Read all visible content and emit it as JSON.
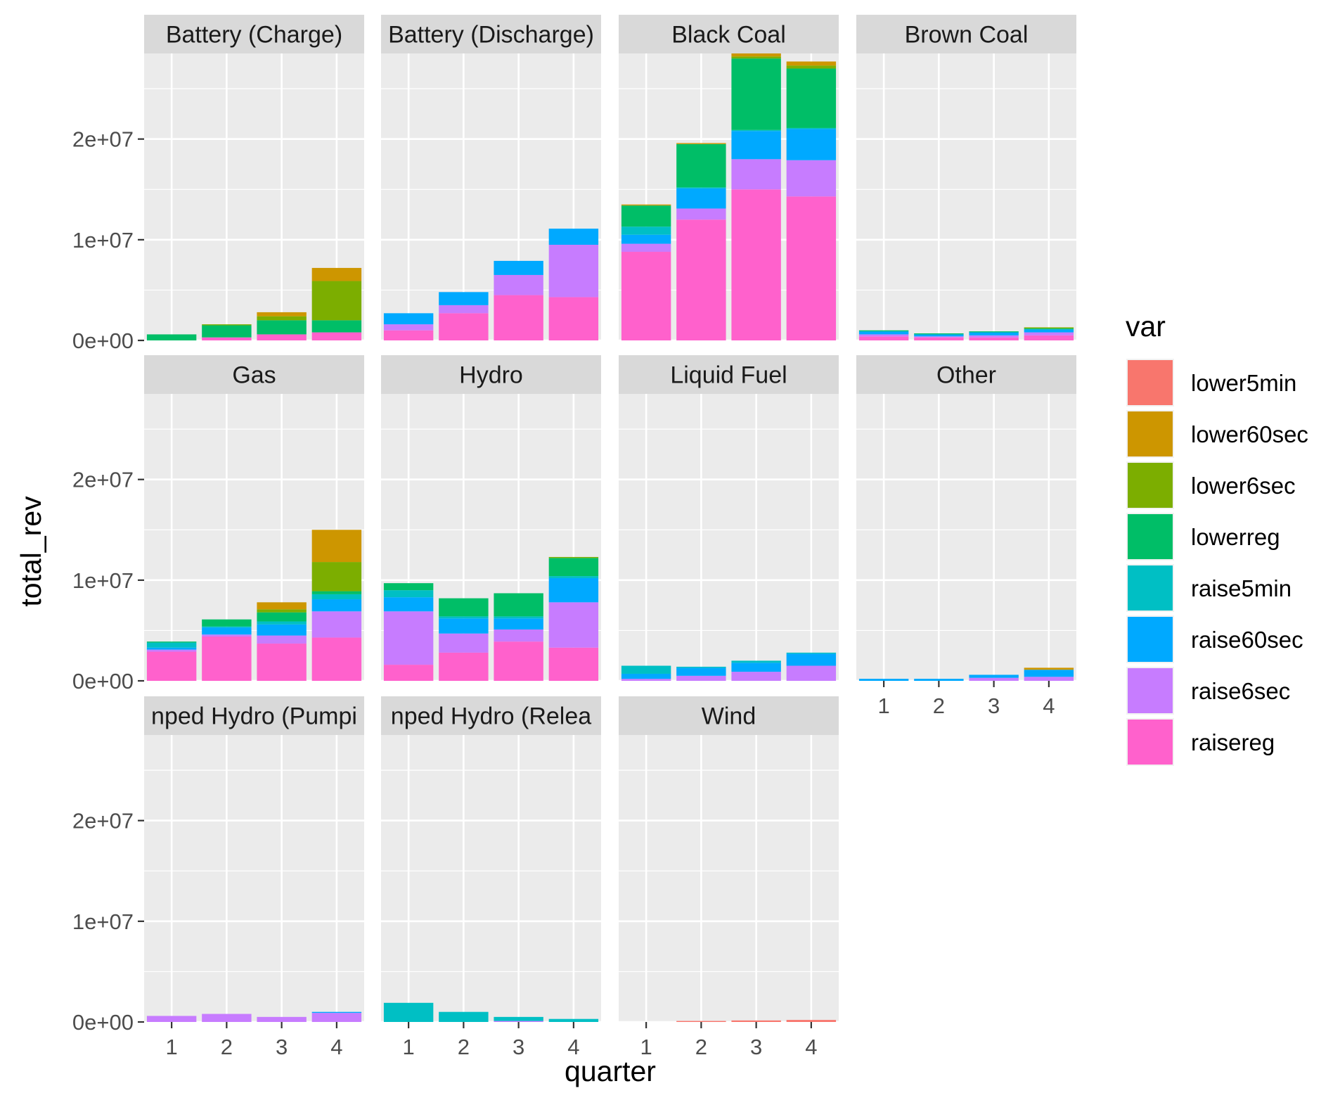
{
  "chart_data": {
    "type": "bar",
    "stacked": true,
    "faceted": true,
    "xlabel": "quarter",
    "ylabel": "total_rev",
    "x_categories": [
      "1",
      "2",
      "3",
      "4"
    ],
    "ylim": [
      0,
      28500000
    ],
    "y_ticks": [
      {
        "value": 0,
        "label": "0e+00"
      },
      {
        "value": 10000000,
        "label": "1e+07"
      },
      {
        "value": 20000000,
        "label": "2e+07"
      }
    ],
    "legend": {
      "title": "var",
      "position": "right",
      "entries": [
        {
          "name": "lower5min",
          "color": "#F8766D"
        },
        {
          "name": "lower60sec",
          "color": "#CD9600"
        },
        {
          "name": "lower6sec",
          "color": "#7CAE00"
        },
        {
          "name": "lowerreg",
          "color": "#00BE67"
        },
        {
          "name": "raise5min",
          "color": "#00BFC4"
        },
        {
          "name": "raise60sec",
          "color": "#00A9FF"
        },
        {
          "name": "raise6sec",
          "color": "#C77CFF"
        },
        {
          "name": "raisereg",
          "color": "#FF61CC"
        }
      ]
    },
    "stack_order": [
      "raisereg",
      "raise6sec",
      "raise60sec",
      "raise5min",
      "lowerreg",
      "lower6sec",
      "lower60sec",
      "lower5min"
    ],
    "panels": [
      {
        "title": "Battery (Charge)",
        "quarters": [
          {
            "q": "1",
            "values": {
              "raisereg": 0,
              "raise6sec": 0,
              "raise60sec": 0,
              "raise5min": 0,
              "lowerreg": 600000,
              "lower6sec": 0,
              "lower60sec": 0,
              "lower5min": 0
            }
          },
          {
            "q": "2",
            "values": {
              "raisereg": 300000,
              "raise6sec": 0,
              "raise60sec": 0,
              "raise5min": 0,
              "lowerreg": 1200000,
              "lower6sec": 100000,
              "lower60sec": 0,
              "lower5min": 0
            }
          },
          {
            "q": "3",
            "values": {
              "raisereg": 600000,
              "raise6sec": 0,
              "raise60sec": 0,
              "raise5min": 0,
              "lowerreg": 1400000,
              "lower6sec": 400000,
              "lower60sec": 400000,
              "lower5min": 0
            }
          },
          {
            "q": "4",
            "values": {
              "raisereg": 800000,
              "raise6sec": 0,
              "raise60sec": 0,
              "raise5min": 0,
              "lowerreg": 1200000,
              "lower6sec": 3900000,
              "lower60sec": 1300000,
              "lower5min": 0
            }
          }
        ]
      },
      {
        "title": "Battery (Discharge)",
        "quarters": [
          {
            "q": "1",
            "values": {
              "raisereg": 1000000,
              "raise6sec": 600000,
              "raise60sec": 1100000,
              "raise5min": 0,
              "lowerreg": 0,
              "lower6sec": 0,
              "lower60sec": 0,
              "lower5min": 0
            }
          },
          {
            "q": "2",
            "values": {
              "raisereg": 2700000,
              "raise6sec": 800000,
              "raise60sec": 1300000,
              "raise5min": 0,
              "lowerreg": 0,
              "lower6sec": 0,
              "lower60sec": 0,
              "lower5min": 0
            }
          },
          {
            "q": "3",
            "values": {
              "raisereg": 4500000,
              "raise6sec": 2000000,
              "raise60sec": 1400000,
              "raise5min": 0,
              "lowerreg": 0,
              "lower6sec": 0,
              "lower60sec": 0,
              "lower5min": 0
            }
          },
          {
            "q": "4",
            "values": {
              "raisereg": 4300000,
              "raise6sec": 5200000,
              "raise60sec": 1600000,
              "raise5min": 0,
              "lowerreg": 0,
              "lower6sec": 0,
              "lower60sec": 0,
              "lower5min": 0
            }
          }
        ]
      },
      {
        "title": "Black Coal",
        "quarters": [
          {
            "q": "1",
            "values": {
              "raisereg": 8800000,
              "raise6sec": 800000,
              "raise60sec": 900000,
              "raise5min": 800000,
              "lowerreg": 2100000,
              "lower6sec": 0,
              "lower60sec": 100000,
              "lower5min": 0
            }
          },
          {
            "q": "2",
            "values": {
              "raisereg": 12000000,
              "raise6sec": 1100000,
              "raise60sec": 2000000,
              "raise5min": 100000,
              "lowerreg": 4300000,
              "lower6sec": 0,
              "lower60sec": 100000,
              "lower5min": 0
            }
          },
          {
            "q": "3",
            "values": {
              "raisereg": 15000000,
              "raise6sec": 3000000,
              "raise60sec": 2800000,
              "raise5min": 100000,
              "lowerreg": 7100000,
              "lower6sec": 200000,
              "lower60sec": 300000,
              "lower5min": 0
            }
          },
          {
            "q": "4",
            "values": {
              "raisereg": 14300000,
              "raise6sec": 3600000,
              "raise60sec": 3100000,
              "raise5min": 100000,
              "lowerreg": 5900000,
              "lower6sec": 300000,
              "lower60sec": 400000,
              "lower5min": 0
            }
          }
        ]
      },
      {
        "title": "Brown Coal",
        "quarters": [
          {
            "q": "1",
            "values": {
              "raisereg": 400000,
              "raise6sec": 200000,
              "raise60sec": 300000,
              "raise5min": 0,
              "lowerreg": 100000,
              "lower6sec": 0,
              "lower60sec": 0,
              "lower5min": 0
            }
          },
          {
            "q": "2",
            "values": {
              "raisereg": 300000,
              "raise6sec": 100000,
              "raise60sec": 200000,
              "raise5min": 0,
              "lowerreg": 100000,
              "lower6sec": 0,
              "lower60sec": 0,
              "lower5min": 0
            }
          },
          {
            "q": "3",
            "values": {
              "raisereg": 300000,
              "raise6sec": 200000,
              "raise60sec": 300000,
              "raise5min": 0,
              "lowerreg": 100000,
              "lower6sec": 0,
              "lower60sec": 0,
              "lower5min": 0
            }
          },
          {
            "q": "4",
            "values": {
              "raisereg": 500000,
              "raise6sec": 300000,
              "raise60sec": 300000,
              "raise5min": 0,
              "lowerreg": 100000,
              "lower6sec": 100000,
              "lower60sec": 0,
              "lower5min": 0
            }
          }
        ]
      },
      {
        "title": "Gas",
        "quarters": [
          {
            "q": "1",
            "values": {
              "raisereg": 2900000,
              "raise6sec": 200000,
              "raise60sec": 200000,
              "raise5min": 500000,
              "lowerreg": 100000,
              "lower6sec": 0,
              "lower60sec": 0,
              "lower5min": 0
            }
          },
          {
            "q": "2",
            "values": {
              "raisereg": 4400000,
              "raise6sec": 200000,
              "raise60sec": 700000,
              "raise5min": 100000,
              "lowerreg": 700000,
              "lower6sec": 0,
              "lower60sec": 0,
              "lower5min": 0
            }
          },
          {
            "q": "3",
            "values": {
              "raisereg": 3700000,
              "raise6sec": 800000,
              "raise60sec": 1100000,
              "raise5min": 300000,
              "lowerreg": 900000,
              "lower6sec": 300000,
              "lower60sec": 700000,
              "lower5min": 0
            }
          },
          {
            "q": "4",
            "values": {
              "raisereg": 4300000,
              "raise6sec": 2600000,
              "raise60sec": 1200000,
              "raise5min": 500000,
              "lowerreg": 300000,
              "lower6sec": 2900000,
              "lower60sec": 3200000,
              "lower5min": 0
            }
          }
        ]
      },
      {
        "title": "Hydro",
        "quarters": [
          {
            "q": "1",
            "values": {
              "raisereg": 1600000,
              "raise6sec": 5300000,
              "raise60sec": 1400000,
              "raise5min": 700000,
              "lowerreg": 700000,
              "lower6sec": 0,
              "lower60sec": 0,
              "lower5min": 0
            }
          },
          {
            "q": "2",
            "values": {
              "raisereg": 2800000,
              "raise6sec": 1900000,
              "raise60sec": 1500000,
              "raise5min": 200000,
              "lowerreg": 1800000,
              "lower6sec": 0,
              "lower60sec": 0,
              "lower5min": 0
            }
          },
          {
            "q": "3",
            "values": {
              "raisereg": 3900000,
              "raise6sec": 1200000,
              "raise60sec": 1100000,
              "raise5min": 200000,
              "lowerreg": 2300000,
              "lower6sec": 0,
              "lower60sec": 0,
              "lower5min": 0
            }
          },
          {
            "q": "4",
            "values": {
              "raisereg": 3300000,
              "raise6sec": 4500000,
              "raise60sec": 2400000,
              "raise5min": 200000,
              "lowerreg": 1800000,
              "lower6sec": 100000,
              "lower60sec": 0,
              "lower5min": 0
            }
          }
        ]
      },
      {
        "title": "Liquid Fuel",
        "quarters": [
          {
            "q": "1",
            "values": {
              "raisereg": 0,
              "raise6sec": 200000,
              "raise60sec": 500000,
              "raise5min": 800000,
              "lowerreg": 0,
              "lower6sec": 0,
              "lower60sec": 0,
              "lower5min": 0
            }
          },
          {
            "q": "2",
            "values": {
              "raisereg": 0,
              "raise6sec": 500000,
              "raise60sec": 800000,
              "raise5min": 100000,
              "lowerreg": 0,
              "lower6sec": 0,
              "lower60sec": 0,
              "lower5min": 0
            }
          },
          {
            "q": "3",
            "values": {
              "raisereg": 0,
              "raise6sec": 900000,
              "raise60sec": 900000,
              "raise5min": 200000,
              "lowerreg": 0,
              "lower6sec": 0,
              "lower60sec": 0,
              "lower5min": 0
            }
          },
          {
            "q": "4",
            "values": {
              "raisereg": 0,
              "raise6sec": 1500000,
              "raise60sec": 1200000,
              "raise5min": 100000,
              "lowerreg": 0,
              "lower6sec": 0,
              "lower60sec": 0,
              "lower5min": 0
            }
          }
        ]
      },
      {
        "title": "Other",
        "quarters": [
          {
            "q": "1",
            "values": {
              "raisereg": 0,
              "raise6sec": 0,
              "raise60sec": 200000,
              "raise5min": 0,
              "lowerreg": 0,
              "lower6sec": 0,
              "lower60sec": 0,
              "lower5min": 0
            }
          },
          {
            "q": "2",
            "values": {
              "raisereg": 0,
              "raise6sec": 0,
              "raise60sec": 200000,
              "raise5min": 0,
              "lowerreg": 0,
              "lower6sec": 0,
              "lower60sec": 0,
              "lower5min": 0
            }
          },
          {
            "q": "3",
            "values": {
              "raisereg": 0,
              "raise6sec": 300000,
              "raise60sec": 300000,
              "raise5min": 0,
              "lowerreg": 0,
              "lower6sec": 0,
              "lower60sec": 0,
              "lower5min": 0
            }
          },
          {
            "q": "4",
            "values": {
              "raisereg": 0,
              "raise6sec": 400000,
              "raise60sec": 700000,
              "raise5min": 0,
              "lowerreg": 0,
              "lower6sec": 0,
              "lower60sec": 200000,
              "lower5min": 0
            }
          }
        ]
      },
      {
        "title": "nped Hydro (Pumpi",
        "quarters": [
          {
            "q": "1",
            "values": {
              "raisereg": 0,
              "raise6sec": 600000,
              "raise60sec": 0,
              "raise5min": 0,
              "lowerreg": 0,
              "lower6sec": 0,
              "lower60sec": 0,
              "lower5min": 0
            }
          },
          {
            "q": "2",
            "values": {
              "raisereg": 0,
              "raise6sec": 800000,
              "raise60sec": 0,
              "raise5min": 0,
              "lowerreg": 0,
              "lower6sec": 0,
              "lower60sec": 0,
              "lower5min": 0
            }
          },
          {
            "q": "3",
            "values": {
              "raisereg": 0,
              "raise6sec": 500000,
              "raise60sec": 0,
              "raise5min": 0,
              "lowerreg": 0,
              "lower6sec": 0,
              "lower60sec": 0,
              "lower5min": 0
            }
          },
          {
            "q": "4",
            "values": {
              "raisereg": 0,
              "raise6sec": 900000,
              "raise60sec": 100000,
              "raise5min": 0,
              "lowerreg": 0,
              "lower6sec": 0,
              "lower60sec": 0,
              "lower5min": 0
            }
          }
        ]
      },
      {
        "title": "nped Hydro (Relea",
        "quarters": [
          {
            "q": "1",
            "values": {
              "raisereg": 0,
              "raise6sec": 0,
              "raise60sec": 0,
              "raise5min": 1900000,
              "lowerreg": 0,
              "lower6sec": 0,
              "lower60sec": 0,
              "lower5min": 0
            }
          },
          {
            "q": "2",
            "values": {
              "raisereg": 0,
              "raise6sec": 0,
              "raise60sec": 0,
              "raise5min": 1000000,
              "lowerreg": 0,
              "lower6sec": 0,
              "lower60sec": 0,
              "lower5min": 0
            }
          },
          {
            "q": "3",
            "values": {
              "raisereg": 0,
              "raise6sec": 100000,
              "raise60sec": 0,
              "raise5min": 400000,
              "lowerreg": 0,
              "lower6sec": 0,
              "lower60sec": 0,
              "lower5min": 0
            }
          },
          {
            "q": "4",
            "values": {
              "raisereg": 0,
              "raise6sec": 0,
              "raise60sec": 0,
              "raise5min": 300000,
              "lowerreg": 0,
              "lower6sec": 0,
              "lower60sec": 0,
              "lower5min": 0
            }
          }
        ]
      },
      {
        "title": "Wind",
        "quarters": [
          {
            "q": "1",
            "values": {
              "raisereg": 0,
              "raise6sec": 0,
              "raise60sec": 0,
              "raise5min": 0,
              "lowerreg": 0,
              "lower6sec": 0,
              "lower60sec": 0,
              "lower5min": 0
            }
          },
          {
            "q": "2",
            "values": {
              "raisereg": 0,
              "raise6sec": 0,
              "raise60sec": 0,
              "raise5min": 0,
              "lowerreg": 0,
              "lower6sec": 0,
              "lower60sec": 0,
              "lower5min": 100000
            }
          },
          {
            "q": "3",
            "values": {
              "raisereg": 0,
              "raise6sec": 0,
              "raise60sec": 0,
              "raise5min": 0,
              "lowerreg": 0,
              "lower6sec": 0,
              "lower60sec": 0,
              "lower5min": 150000
            }
          },
          {
            "q": "4",
            "values": {
              "raisereg": 0,
              "raise6sec": 0,
              "raise60sec": 0,
              "raise5min": 0,
              "lowerreg": 0,
              "lower6sec": 0,
              "lower60sec": 0,
              "lower5min": 200000
            }
          }
        ]
      }
    ]
  }
}
